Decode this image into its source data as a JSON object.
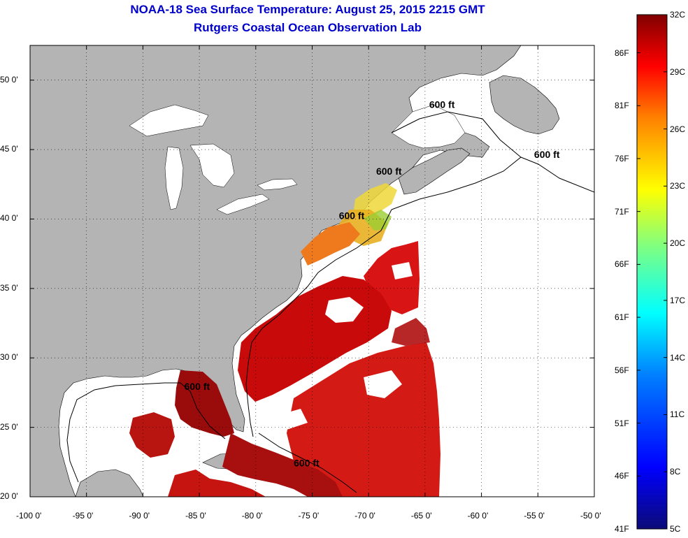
{
  "title": {
    "line1": "NOAA-18 Sea Surface Temperature:  August 25, 2015 2215 GMT",
    "line2": "Rutgers Coastal Ocean Observation Lab"
  },
  "map": {
    "region": "US East Coast, Gulf of Mexico and western North Atlantic",
    "lon_range": [
      -100,
      -50
    ],
    "lat_range": [
      20,
      52.5
    ],
    "gridlines": true,
    "land_color": "#b4b4b4",
    "no_data_color": "#ffffff",
    "lon_ticks": [
      {
        "value": -100,
        "label": "-100 0'"
      },
      {
        "value": -95,
        "label": "-95 0'"
      },
      {
        "value": -90,
        "label": "-90 0'"
      },
      {
        "value": -85,
        "label": "-85 0'"
      },
      {
        "value": -80,
        "label": "-80 0'"
      },
      {
        "value": -75,
        "label": "-75 0'"
      },
      {
        "value": -70,
        "label": "-70 0'"
      },
      {
        "value": -65,
        "label": "-65 0'"
      },
      {
        "value": -60,
        "label": "-60 0'"
      },
      {
        "value": -55,
        "label": "-55 0'"
      },
      {
        "value": -50,
        "label": "-50 0'"
      }
    ],
    "lat_ticks": [
      {
        "value": 50,
        "label": "50 0'"
      },
      {
        "value": 45,
        "label": "45 0'"
      },
      {
        "value": 40,
        "label": "40 0'"
      },
      {
        "value": 35,
        "label": "35 0'"
      },
      {
        "value": 30,
        "label": "30 0'"
      },
      {
        "value": 25,
        "label": "25 0'"
      },
      {
        "value": 20,
        "label": "20 0'"
      }
    ],
    "isobath_labels": [
      {
        "text": "600 ft",
        "lon": -63.5,
        "lat": 48.0
      },
      {
        "text": "600 ft",
        "lon": -54.2,
        "lat": 44.4
      },
      {
        "text": "600 ft",
        "lon": -68.2,
        "lat": 43.2
      },
      {
        "text": "600 ft",
        "lon": -71.5,
        "lat": 40.0
      },
      {
        "text": "600 ft",
        "lon": -85.2,
        "lat": 27.7
      },
      {
        "text": "600 ft",
        "lon": -75.5,
        "lat": 22.2
      }
    ]
  },
  "colorbar": {
    "colors": [
      "#0b0b78",
      "#0000ff",
      "#0080ff",
      "#00ffff",
      "#80ff80",
      "#ffff00",
      "#ff8000",
      "#ff0000",
      "#800000"
    ],
    "celsius": [
      {
        "value": 32,
        "label": "32C"
      },
      {
        "value": 29,
        "label": "29C"
      },
      {
        "value": 26,
        "label": "26C"
      },
      {
        "value": 23,
        "label": "23C"
      },
      {
        "value": 20,
        "label": "20C"
      },
      {
        "value": 17,
        "label": "17C"
      },
      {
        "value": 14,
        "label": "14C"
      },
      {
        "value": 11,
        "label": "11C"
      },
      {
        "value": 8,
        "label": "8C"
      },
      {
        "value": 5,
        "label": "5C"
      }
    ],
    "fahrenheit": [
      {
        "value": 86,
        "label": "86F"
      },
      {
        "value": 81,
        "label": "81F"
      },
      {
        "value": 76,
        "label": "76F"
      },
      {
        "value": 71,
        "label": "71F"
      },
      {
        "value": 66,
        "label": "66F"
      },
      {
        "value": 61,
        "label": "61F"
      },
      {
        "value": 56,
        "label": "56F"
      },
      {
        "value": 51,
        "label": "51F"
      },
      {
        "value": 46,
        "label": "46F"
      },
      {
        "value": 41,
        "label": "41F"
      }
    ]
  }
}
